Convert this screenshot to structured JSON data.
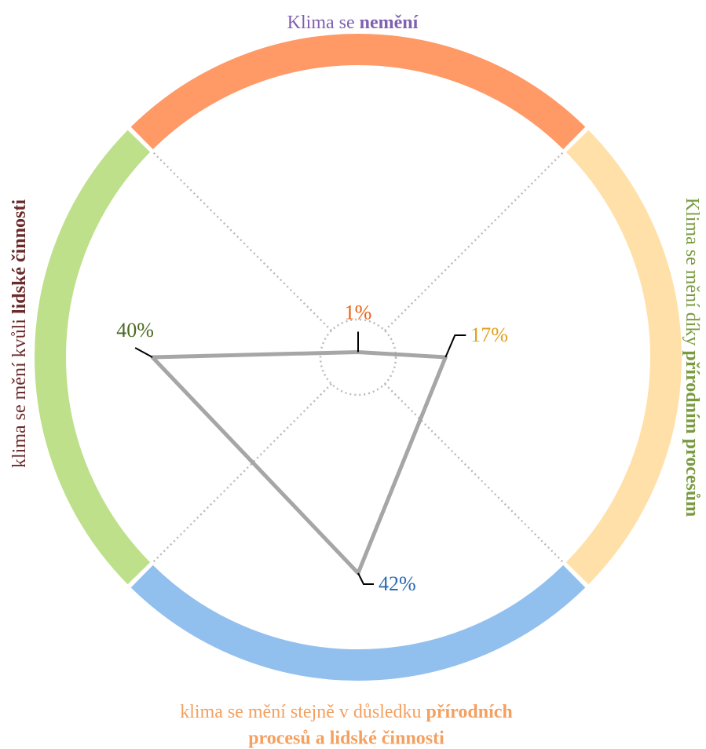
{
  "chart_data": {
    "type": "radar",
    "categories": [
      {
        "text": "Klima se ",
        "bold": "nemění"
      },
      {
        "text": "Klima se mění díky ",
        "bold": "přírodním procesům"
      },
      {
        "text": "klima se mění stejně v důsledku ",
        "bold": "přírodních",
        "bold2": "procesů a lidské činnosti"
      },
      {
        "text": "klima se mění kvůli ",
        "bold": "lidské činnosti"
      }
    ],
    "values": [
      1,
      17,
      42,
      40
    ],
    "value_labels": [
      "1%",
      "17%",
      "42%",
      "40%"
    ],
    "rlim": [
      0,
      42
    ],
    "line_color": "#a6a6a6",
    "segment_colors": [
      "#ff9966",
      "#ffe0a8",
      "#92c0ee",
      "#bee08a"
    ],
    "label_colors": [
      "#8060b0",
      "#7a9a40",
      "#f4a060",
      "#6b2a2a"
    ],
    "value_label_colors": [
      "#e8631a",
      "#e0a020",
      "#2a6ab0",
      "#4a6a20"
    ]
  }
}
